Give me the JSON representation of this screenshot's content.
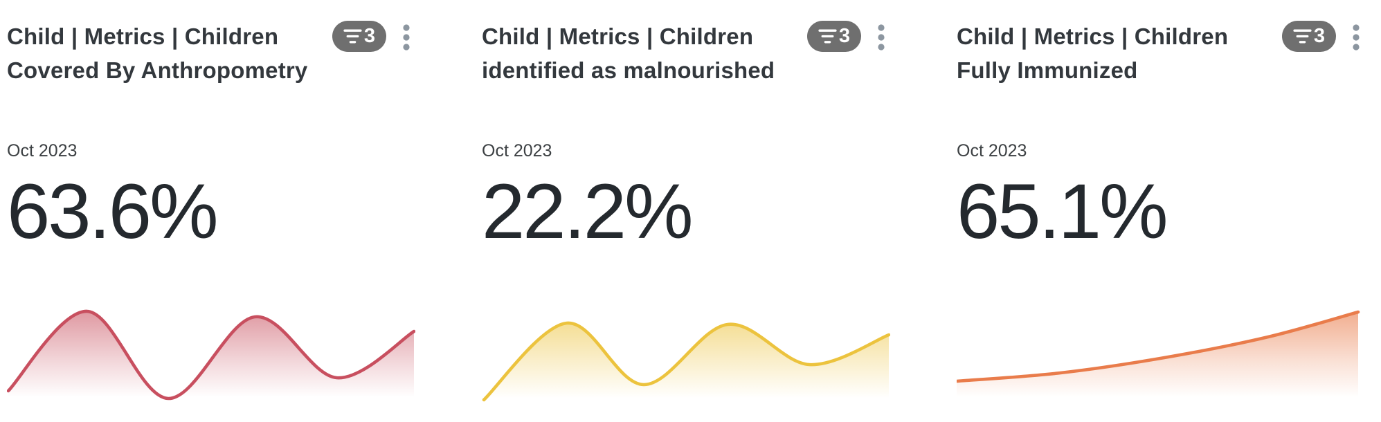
{
  "page": {
    "background": "#ffffff",
    "title_color": "#33383d",
    "value_color": "#24292e",
    "badge_bg": "#6f6f6f",
    "badge_text_color": "#ffffff",
    "kebab_dot_color": "#8c96a0"
  },
  "icons": {
    "filter": "filter-icon",
    "menu": "kebab-menu-icon"
  },
  "cards": [
    {
      "title": "Child | Metrics | Children Covered By Anthropometry",
      "title_lines": [
        "Child | Metrics | Children",
        "Covered By Anthropometry"
      ],
      "filter_count": "3",
      "period": "Oct 2023",
      "value": "63.6%",
      "chart_data": {
        "type": "area",
        "subtype": "sparkline",
        "units": "svg-viewbox px, y-down, viewbox 590x165, no axes or labels shown",
        "line_color": "#c84f5f",
        "fill_top": "rgba(200,79,94,0.58)",
        "fill_bottom": "rgba(200,79,94,0)",
        "points": [
          [
            2,
            145
          ],
          [
            116,
            30
          ],
          [
            233,
            156
          ],
          [
            358,
            38
          ],
          [
            476,
            126
          ],
          [
            588,
            59
          ]
        ]
      }
    },
    {
      "title": "Child | Metrics | Children identified as malnourished",
      "title_lines": [
        "Child | Metrics | Children",
        "identified as malnourished"
      ],
      "filter_count": "3",
      "period": "Oct 2023",
      "value": "22.2%",
      "chart_data": {
        "type": "area",
        "subtype": "sparkline",
        "units": "svg-viewbox px, y-down, viewbox 590x165, no axes or labels shown",
        "line_color": "#ecc33e",
        "fill_top": "rgba(236,195,62,0.55)",
        "fill_bottom": "rgba(236,195,62,0)",
        "points": [
          [
            3,
            158
          ],
          [
            123,
            47
          ],
          [
            234,
            136
          ],
          [
            355,
            49
          ],
          [
            473,
            107
          ],
          [
            588,
            64
          ]
        ]
      }
    },
    {
      "title": "Child | Metrics | Children Fully Immunized",
      "title_lines": [
        "Child | Metrics | Children",
        "Fully Immunized"
      ],
      "filter_count": "3",
      "period": "Oct 2023",
      "value": "65.1%",
      "chart_data": {
        "type": "area",
        "subtype": "sparkline",
        "units": "svg-viewbox px, y-down, viewbox 590x165, no axes or labels shown",
        "line_color": "#e97c4b",
        "fill_top": "rgba(233,124,75,0.62)",
        "fill_bottom": "rgba(233,124,75,0)",
        "points": [
          [
            0,
            131
          ],
          [
            150,
            119
          ],
          [
            300,
            97
          ],
          [
            450,
            67
          ],
          [
            580,
            31
          ]
        ]
      }
    }
  ]
}
